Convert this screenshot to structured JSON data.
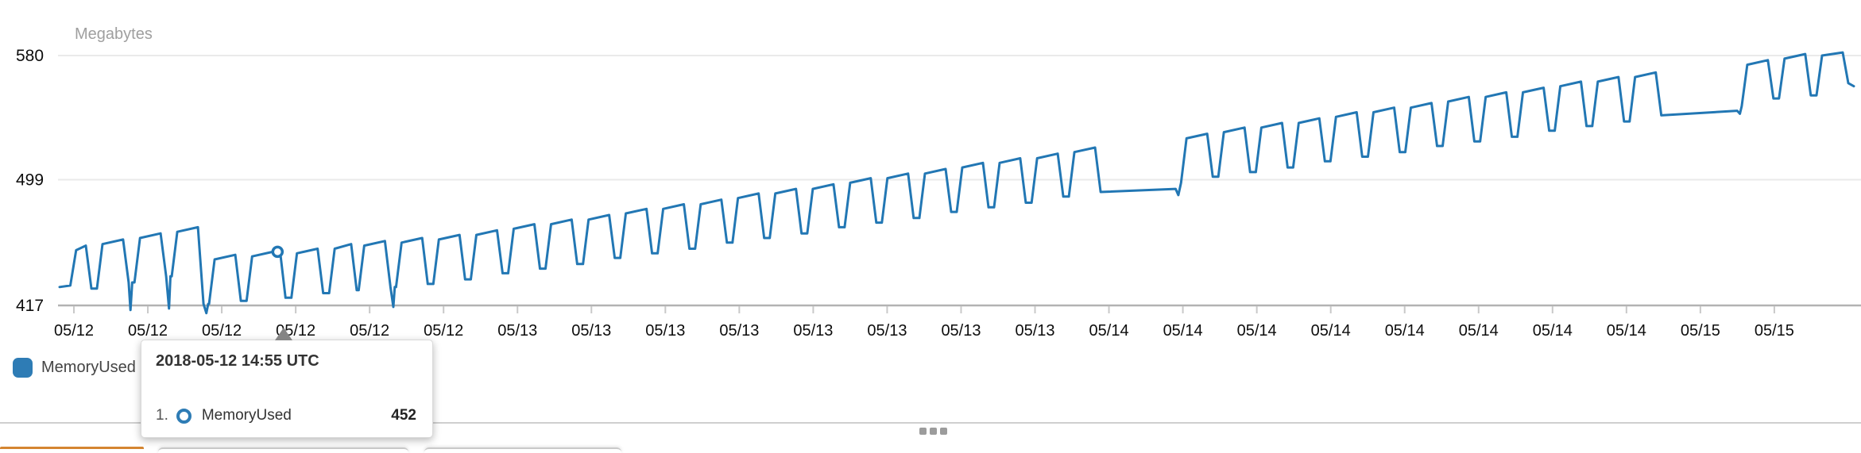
{
  "chart_data": {
    "type": "line",
    "title": "",
    "ylabel": "Megabytes",
    "xlabel": "",
    "grid": true,
    "legend_position": "bottom-left",
    "ylim": [
      410,
      600
    ],
    "y_ticks": [
      {
        "value": 580,
        "label": "580"
      },
      {
        "value": 499,
        "label": "499"
      },
      {
        "value": 417,
        "label": "417"
      }
    ],
    "x_tick_labels": [
      "05/12",
      "05/12",
      "05/12",
      "05/12",
      "05/12",
      "05/12",
      "05/13",
      "05/13",
      "05/13",
      "05/13",
      "05/13",
      "05/13",
      "05/13",
      "05/13",
      "05/14",
      "05/14",
      "05/14",
      "05/14",
      "05/14",
      "05/14",
      "05/14",
      "05/14",
      "05/15",
      "05/15"
    ],
    "hover_point": {
      "t": 0.1215,
      "value": 452,
      "time": "2018-05-12 14:55 UTC",
      "series": "MemoryUsed"
    },
    "series": [
      {
        "name": "MemoryUsed",
        "color": "#2277b4",
        "points": [
          [
            0,
            429
          ],
          [
            0.006,
            430
          ],
          [
            0.0092,
            453
          ],
          [
            0.0146,
            456
          ],
          [
            0.0177,
            428
          ],
          [
            0.0208,
            428
          ],
          [
            0.0239,
            457
          ],
          [
            0.0354,
            460
          ],
          [
            0.0385,
            432
          ],
          [
            0.0395,
            414
          ],
          [
            0.0405,
            432
          ],
          [
            0.0417,
            432
          ],
          [
            0.0448,
            461
          ],
          [
            0.0563,
            464
          ],
          [
            0.0594,
            436
          ],
          [
            0.061,
            415
          ],
          [
            0.0618,
            436
          ],
          [
            0.0625,
            436
          ],
          [
            0.0656,
            465
          ],
          [
            0.0771,
            468
          ],
          [
            0.0802,
            418
          ],
          [
            0.0818,
            412
          ],
          [
            0.0828,
            418
          ],
          [
            0.0833,
            418
          ],
          [
            0.0864,
            447
          ],
          [
            0.0979,
            450
          ],
          [
            0.101,
            420
          ],
          [
            0.1042,
            420
          ],
          [
            0.1073,
            449
          ],
          [
            0.1188,
            452
          ],
          [
            0.1228,
            453
          ],
          [
            0.1259,
            422
          ],
          [
            0.1292,
            422
          ],
          [
            0.1323,
            451
          ],
          [
            0.1438,
            454
          ],
          [
            0.1469,
            425
          ],
          [
            0.1502,
            425
          ],
          [
            0.1533,
            454
          ],
          [
            0.1625,
            457
          ],
          [
            0.1656,
            427
          ],
          [
            0.1667,
            427
          ],
          [
            0.1698,
            456
          ],
          [
            0.1813,
            459
          ],
          [
            0.1844,
            429
          ],
          [
            0.186,
            416
          ],
          [
            0.1868,
            429
          ],
          [
            0.1875,
            429
          ],
          [
            0.1906,
            458
          ],
          [
            0.2021,
            461
          ],
          [
            0.2052,
            431
          ],
          [
            0.2083,
            431
          ],
          [
            0.2114,
            460
          ],
          [
            0.2229,
            463
          ],
          [
            0.226,
            434
          ],
          [
            0.2292,
            434
          ],
          [
            0.2323,
            463
          ],
          [
            0.2438,
            466
          ],
          [
            0.2469,
            438
          ],
          [
            0.25,
            438
          ],
          [
            0.2531,
            467
          ],
          [
            0.2646,
            470
          ],
          [
            0.2677,
            441
          ],
          [
            0.2708,
            441
          ],
          [
            0.2739,
            470
          ],
          [
            0.2854,
            473
          ],
          [
            0.2885,
            444
          ],
          [
            0.2917,
            444
          ],
          [
            0.2948,
            473
          ],
          [
            0.3063,
            476
          ],
          [
            0.3094,
            448
          ],
          [
            0.3125,
            448
          ],
          [
            0.3156,
            477
          ],
          [
            0.3271,
            480
          ],
          [
            0.3302,
            451
          ],
          [
            0.3333,
            451
          ],
          [
            0.3364,
            480
          ],
          [
            0.3479,
            483
          ],
          [
            0.351,
            454
          ],
          [
            0.3542,
            454
          ],
          [
            0.3573,
            483
          ],
          [
            0.3688,
            486
          ],
          [
            0.3719,
            458
          ],
          [
            0.375,
            458
          ],
          [
            0.3781,
            487
          ],
          [
            0.3896,
            490
          ],
          [
            0.3927,
            461
          ],
          [
            0.3958,
            461
          ],
          [
            0.3989,
            490
          ],
          [
            0.4104,
            493
          ],
          [
            0.4135,
            464
          ],
          [
            0.4167,
            464
          ],
          [
            0.4198,
            493
          ],
          [
            0.4313,
            496
          ],
          [
            0.4344,
            468
          ],
          [
            0.4375,
            468
          ],
          [
            0.4406,
            497
          ],
          [
            0.4521,
            500
          ],
          [
            0.4552,
            471
          ],
          [
            0.4583,
            471
          ],
          [
            0.4614,
            500
          ],
          [
            0.4729,
            503
          ],
          [
            0.476,
            474
          ],
          [
            0.4792,
            474
          ],
          [
            0.4823,
            503
          ],
          [
            0.4938,
            506
          ],
          [
            0.4969,
            478
          ],
          [
            0.5,
            478
          ],
          [
            0.5031,
            507
          ],
          [
            0.5146,
            510
          ],
          [
            0.5177,
            481
          ],
          [
            0.5208,
            481
          ],
          [
            0.5239,
            510
          ],
          [
            0.5354,
            513
          ],
          [
            0.5385,
            484
          ],
          [
            0.5417,
            484
          ],
          [
            0.5448,
            513
          ],
          [
            0.5563,
            516
          ],
          [
            0.5594,
            488
          ],
          [
            0.5625,
            488
          ],
          [
            0.5656,
            517
          ],
          [
            0.5771,
            520
          ],
          [
            0.5802,
            491
          ],
          [
            0.622,
            493
          ],
          [
            0.6235,
            489
          ],
          [
            0.625,
            497
          ],
          [
            0.6281,
            526
          ],
          [
            0.6396,
            529
          ],
          [
            0.6427,
            501
          ],
          [
            0.6458,
            501
          ],
          [
            0.6489,
            530
          ],
          [
            0.6604,
            533
          ],
          [
            0.6635,
            504
          ],
          [
            0.6667,
            504
          ],
          [
            0.6698,
            533
          ],
          [
            0.6813,
            536
          ],
          [
            0.6844,
            507
          ],
          [
            0.6875,
            507
          ],
          [
            0.6906,
            536
          ],
          [
            0.7021,
            539
          ],
          [
            0.7052,
            511
          ],
          [
            0.7083,
            511
          ],
          [
            0.7114,
            540
          ],
          [
            0.7229,
            543
          ],
          [
            0.726,
            514
          ],
          [
            0.7292,
            514
          ],
          [
            0.7323,
            543
          ],
          [
            0.7438,
            546
          ],
          [
            0.7469,
            517
          ],
          [
            0.75,
            517
          ],
          [
            0.7531,
            546
          ],
          [
            0.7646,
            549
          ],
          [
            0.7677,
            521
          ],
          [
            0.7708,
            521
          ],
          [
            0.7739,
            550
          ],
          [
            0.7854,
            553
          ],
          [
            0.7885,
            524
          ],
          [
            0.7917,
            524
          ],
          [
            0.7948,
            553
          ],
          [
            0.8063,
            556
          ],
          [
            0.8094,
            527
          ],
          [
            0.8125,
            527
          ],
          [
            0.8156,
            556
          ],
          [
            0.8271,
            559
          ],
          [
            0.8302,
            531
          ],
          [
            0.8333,
            531
          ],
          [
            0.8364,
            560
          ],
          [
            0.8479,
            563
          ],
          [
            0.851,
            534
          ],
          [
            0.8542,
            534
          ],
          [
            0.8573,
            563
          ],
          [
            0.8688,
            566
          ],
          [
            0.8719,
            537
          ],
          [
            0.875,
            537
          ],
          [
            0.8781,
            566
          ],
          [
            0.8896,
            569
          ],
          [
            0.8927,
            541
          ],
          [
            0.935,
            544
          ],
          [
            0.9365,
            542
          ],
          [
            0.9375,
            547
          ],
          [
            0.9406,
            574
          ],
          [
            0.9521,
            577
          ],
          [
            0.9552,
            552
          ],
          [
            0.9583,
            552
          ],
          [
            0.9614,
            578
          ],
          [
            0.9729,
            581
          ],
          [
            0.976,
            554
          ],
          [
            0.9792,
            554
          ],
          [
            0.9823,
            580
          ],
          [
            0.9938,
            582
          ],
          [
            0.9969,
            562
          ],
          [
            1,
            560
          ]
        ]
      }
    ]
  },
  "legend": {
    "items": [
      {
        "label": "MemoryUsed",
        "color": "#2e7cb5"
      }
    ]
  },
  "tooltip": {
    "title": "2018-05-12 14:55 UTC",
    "rows": [
      {
        "index": "1.",
        "label": "MemoryUsed",
        "value": "452",
        "marker_color": "#2e7cb5"
      }
    ]
  },
  "colors": {
    "line": "#2277b4",
    "grid": "#eaeaea",
    "axis": "#b3b3b3",
    "tick": "#c9c9c9",
    "tooltip_arrow": "#858585",
    "active_peek_orange": "#d48531"
  }
}
